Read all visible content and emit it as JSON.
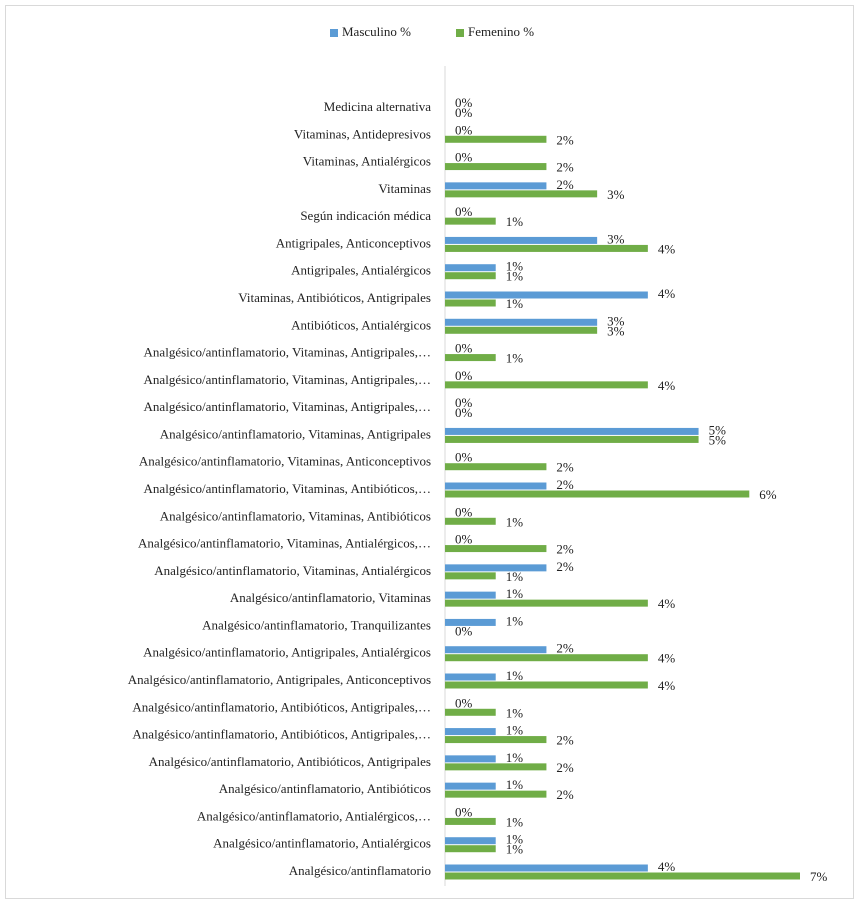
{
  "chart_data": {
    "type": "hbar",
    "categories": [
      "Medicina alternativa",
      "Vitaminas, Antidepresivos",
      "Vitaminas, Antialérgicos",
      "Vitaminas",
      "Según indicación médica",
      "Antigripales, Anticonceptivos",
      "Antigripales, Antialérgicos",
      "Vitaminas, Antibióticos, Antigripales",
      "Antibióticos, Antialérgicos",
      "Analgésico/antinflamatorio, Vitaminas, Antigripales,…",
      "Analgésico/antinflamatorio, Vitaminas, Antigripales,…",
      "Analgésico/antinflamatorio, Vitaminas, Antigripales,…",
      "Analgésico/antinflamatorio, Vitaminas, Antigripales",
      "Analgésico/antinflamatorio, Vitaminas, Anticonceptivos",
      "Analgésico/antinflamatorio, Vitaminas, Antibióticos,…",
      "Analgésico/antinflamatorio, Vitaminas, Antibióticos",
      "Analgésico/antinflamatorio, Vitaminas, Antialérgicos,…",
      "Analgésico/antinflamatorio, Vitaminas, Antialérgicos",
      "Analgésico/antinflamatorio, Vitaminas",
      "Analgésico/antinflamatorio, Tranquilizantes",
      "Analgésico/antinflamatorio, Antigripales, Antialérgicos",
      "Analgésico/antinflamatorio, Antigripales, Anticonceptivos",
      "Analgésico/antinflamatorio, Antibióticos, Antigripales,…",
      "Analgésico/antinflamatorio, Antibióticos, Antigripales,…",
      "Analgésico/antinflamatorio, Antibióticos, Antigripales",
      "Analgésico/antinflamatorio, Antibióticos",
      "Analgésico/antinflamatorio, Antialérgicos,…",
      "Analgésico/antinflamatorio, Antialérgicos",
      "Analgésico/antinflamatorio"
    ],
    "series": [
      {
        "name": "Masculino %",
        "color": "#5b9bd5",
        "values": [
          0,
          0,
          0,
          2,
          0,
          3,
          1,
          4,
          3,
          0,
          0,
          0,
          5,
          0,
          2,
          0,
          0,
          2,
          1,
          1,
          2,
          1,
          0,
          1,
          1,
          1,
          0,
          1,
          4
        ],
        "value_labels": [
          "0%",
          "0%",
          "0%",
          "2%",
          "0%",
          "3%",
          "1%",
          "4%",
          "3%",
          "0%",
          "0%",
          "0%",
          "5%",
          "0%",
          "2%",
          "0%",
          "0%",
          "2%",
          "1%",
          "1%",
          "2%",
          "1%",
          "0%",
          "1%",
          "1%",
          "1%",
          "0%",
          "1%",
          "4%"
        ]
      },
      {
        "name": "Femenino %",
        "color": "#70ad47",
        "values": [
          0,
          2,
          2,
          3,
          1,
          4,
          1,
          1,
          3,
          1,
          4,
          0,
          5,
          2,
          6,
          1,
          2,
          1,
          4,
          0,
          4,
          4,
          1,
          2,
          2,
          2,
          1,
          1,
          7
        ],
        "value_labels": [
          "0%",
          "2%",
          "2%",
          "3%",
          "1%",
          "4%",
          "1%",
          "1%",
          "3%",
          "1%",
          "4%",
          "0%",
          "5%",
          "2%",
          "6%",
          "1%",
          "2%",
          "1%",
          "4%",
          "0%",
          "4%",
          "4%",
          "1%",
          "2%",
          "2%",
          "2%",
          "1%",
          "1%",
          "7%"
        ]
      }
    ],
    "legend": "top"
  }
}
